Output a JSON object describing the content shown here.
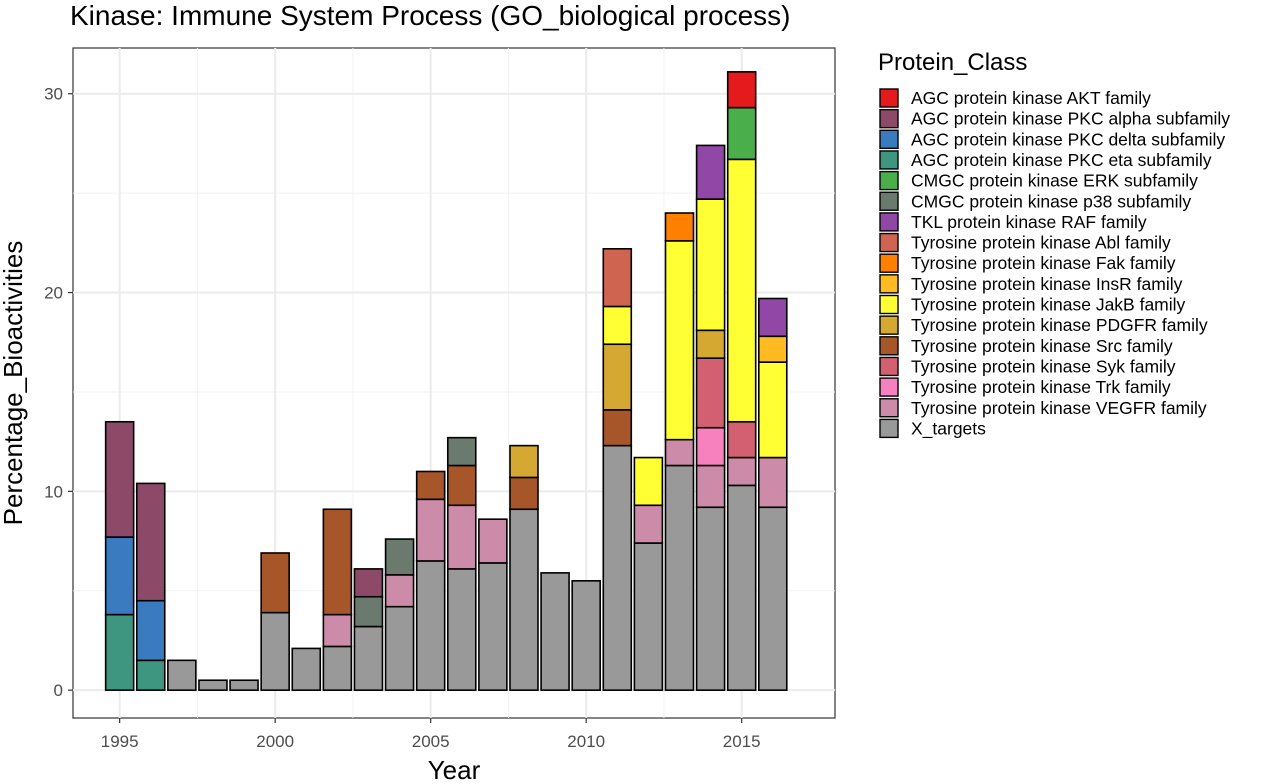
{
  "chart_data": {
    "type": "bar",
    "stacked": true,
    "title": "Kinase: Immune System Process (GO_biological process)",
    "xlabel": "Year",
    "ylabel": "Percentage_Bioactivities",
    "xlim": [
      1993.5,
      2018.0
    ],
    "ylim": [
      -1.4,
      32.3
    ],
    "xticks": [
      1995,
      2000,
      2005,
      2010,
      2015
    ],
    "yticks": [
      0,
      10,
      20,
      30
    ],
    "grid": true,
    "legend_title": "Protein_Class",
    "legend_position": "right",
    "series": [
      {
        "name": "AGC protein kinase AKT family",
        "color": "#E41A1C"
      },
      {
        "name": "AGC protein kinase PKC alpha subfamily",
        "color": "#8C4A68"
      },
      {
        "name": "AGC protein kinase PKC delta subfamily",
        "color": "#3A7BBF"
      },
      {
        "name": "AGC protein kinase PKC eta subfamily",
        "color": "#3F9680"
      },
      {
        "name": "CMGC protein kinase ERK subfamily",
        "color": "#4AAE4A"
      },
      {
        "name": "CMGC protein kinase p38 subfamily",
        "color": "#6B7A6E"
      },
      {
        "name": "TKL protein kinase RAF family",
        "color": "#9047A6"
      },
      {
        "name": "Tyrosine protein kinase Abl family",
        "color": "#CF6550"
      },
      {
        "name": "Tyrosine protein kinase Fak family",
        "color": "#FF7F00"
      },
      {
        "name": "Tyrosine protein kinase InsR family",
        "color": "#FFBB21"
      },
      {
        "name": "Tyrosine protein kinase JakB family",
        "color": "#FFFF33"
      },
      {
        "name": "Tyrosine protein kinase PDGFR family",
        "color": "#D5A832"
      },
      {
        "name": "Tyrosine protein kinase Src family",
        "color": "#A65628"
      },
      {
        "name": "Tyrosine protein kinase Syk family",
        "color": "#D26070"
      },
      {
        "name": "Tyrosine protein kinase Trk family",
        "color": "#F781BF"
      },
      {
        "name": "Tyrosine protein kinase VEGFR family",
        "color": "#CD8BAA"
      },
      {
        "name": "X_targets",
        "color": "#999999"
      }
    ],
    "bars": [
      {
        "x": 1995,
        "segments": [
          [
            "AGC protein kinase PKC eta subfamily",
            3.8
          ],
          [
            "AGC protein kinase PKC delta subfamily",
            3.9
          ],
          [
            "AGC protein kinase PKC alpha subfamily",
            5.8
          ]
        ]
      },
      {
        "x": 1996,
        "segments": [
          [
            "AGC protein kinase PKC eta subfamily",
            1.5
          ],
          [
            "AGC protein kinase PKC delta subfamily",
            3.0
          ],
          [
            "AGC protein kinase PKC alpha subfamily",
            5.9
          ]
        ]
      },
      {
        "x": 1997,
        "segments": [
          [
            "X_targets",
            1.5
          ]
        ]
      },
      {
        "x": 1998,
        "segments": [
          [
            "X_targets",
            0.5
          ]
        ]
      },
      {
        "x": 1999,
        "segments": [
          [
            "X_targets",
            0.5
          ]
        ]
      },
      {
        "x": 2000,
        "segments": [
          [
            "X_targets",
            3.9
          ],
          [
            "Tyrosine protein kinase Src family",
            3.0
          ]
        ]
      },
      {
        "x": 2001,
        "segments": [
          [
            "X_targets",
            2.1
          ]
        ]
      },
      {
        "x": 2002,
        "segments": [
          [
            "X_targets",
            2.2
          ],
          [
            "Tyrosine protein kinase VEGFR family",
            1.6
          ],
          [
            "Tyrosine protein kinase Src family",
            5.3
          ]
        ]
      },
      {
        "x": 2003,
        "segments": [
          [
            "X_targets",
            3.2
          ],
          [
            "CMGC protein kinase p38 subfamily",
            1.5
          ],
          [
            "AGC protein kinase PKC alpha subfamily",
            1.4
          ]
        ]
      },
      {
        "x": 2004,
        "segments": [
          [
            "X_targets",
            4.2
          ],
          [
            "Tyrosine protein kinase VEGFR family",
            1.6
          ],
          [
            "CMGC protein kinase p38 subfamily",
            1.8
          ]
        ]
      },
      {
        "x": 2005,
        "segments": [
          [
            "X_targets",
            6.5
          ],
          [
            "Tyrosine protein kinase VEGFR family",
            3.1
          ],
          [
            "Tyrosine protein kinase Src family",
            1.4
          ]
        ]
      },
      {
        "x": 2006,
        "segments": [
          [
            "X_targets",
            6.1
          ],
          [
            "Tyrosine protein kinase VEGFR family",
            3.2
          ],
          [
            "Tyrosine protein kinase Src family",
            2.0
          ],
          [
            "CMGC protein kinase p38 subfamily",
            1.4
          ]
        ]
      },
      {
        "x": 2007,
        "segments": [
          [
            "X_targets",
            6.4
          ],
          [
            "Tyrosine protein kinase VEGFR family",
            2.2
          ]
        ]
      },
      {
        "x": 2008,
        "segments": [
          [
            "X_targets",
            9.1
          ],
          [
            "Tyrosine protein kinase Src family",
            1.6
          ],
          [
            "Tyrosine protein kinase PDGFR family",
            1.6
          ]
        ]
      },
      {
        "x": 2009,
        "segments": [
          [
            "X_targets",
            5.9
          ]
        ]
      },
      {
        "x": 2010,
        "segments": [
          [
            "X_targets",
            5.5
          ]
        ]
      },
      {
        "x": 2011,
        "segments": [
          [
            "X_targets",
            12.3
          ],
          [
            "Tyrosine protein kinase Src family",
            1.8
          ],
          [
            "Tyrosine protein kinase PDGFR family",
            3.3
          ],
          [
            "Tyrosine protein kinase JakB family",
            1.9
          ],
          [
            "Tyrosine protein kinase Abl family",
            2.9
          ]
        ]
      },
      {
        "x": 2012,
        "segments": [
          [
            "X_targets",
            7.4
          ],
          [
            "Tyrosine protein kinase VEGFR family",
            1.9
          ],
          [
            "Tyrosine protein kinase JakB family",
            2.4
          ]
        ]
      },
      {
        "x": 2013,
        "segments": [
          [
            "X_targets",
            11.3
          ],
          [
            "Tyrosine protein kinase VEGFR family",
            1.3
          ],
          [
            "Tyrosine protein kinase JakB family",
            10.0
          ],
          [
            "Tyrosine protein kinase Fak family",
            1.4
          ]
        ]
      },
      {
        "x": 2014,
        "segments": [
          [
            "X_targets",
            9.2
          ],
          [
            "Tyrosine protein kinase VEGFR family",
            2.1
          ],
          [
            "Tyrosine protein kinase Trk family",
            1.9
          ],
          [
            "Tyrosine protein kinase Syk family",
            3.5
          ],
          [
            "Tyrosine protein kinase PDGFR family",
            1.4
          ],
          [
            "Tyrosine protein kinase JakB family",
            6.6
          ],
          [
            "TKL protein kinase RAF family",
            2.7
          ]
        ]
      },
      {
        "x": 2015,
        "segments": [
          [
            "X_targets",
            10.3
          ],
          [
            "Tyrosine protein kinase VEGFR family",
            1.4
          ],
          [
            "Tyrosine protein kinase Syk family",
            1.8
          ],
          [
            "Tyrosine protein kinase JakB family",
            13.2
          ],
          [
            "CMGC protein kinase ERK subfamily",
            2.6
          ],
          [
            "AGC protein kinase AKT family",
            1.8
          ]
        ]
      },
      {
        "x": 2016,
        "segments": [
          [
            "X_targets",
            9.2
          ],
          [
            "Tyrosine protein kinase VEGFR family",
            2.5
          ],
          [
            "Tyrosine protein kinase JakB family",
            4.8
          ],
          [
            "Tyrosine protein kinase InsR family",
            1.3
          ],
          [
            "TKL protein kinase RAF family",
            1.9
          ]
        ]
      }
    ]
  }
}
